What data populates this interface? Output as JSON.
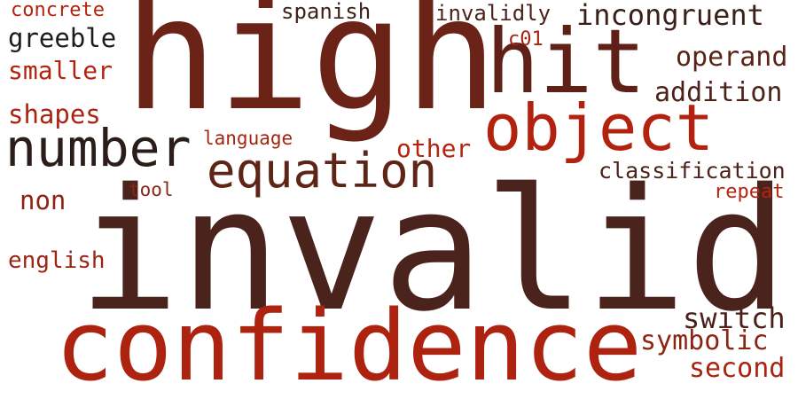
{
  "words": [
    {
      "id": "invalid",
      "text": "invalid",
      "color": "#4a231c"
    },
    {
      "id": "high",
      "text": "high",
      "color": "#6b2318"
    },
    {
      "id": "confidence",
      "text": "confidence",
      "color": "#ad2310"
    },
    {
      "id": "hit",
      "text": "hit",
      "color": "#5f2018"
    },
    {
      "id": "object",
      "text": "object",
      "color": "#b2220f"
    },
    {
      "id": "number",
      "text": "number",
      "color": "#2b1d1a"
    },
    {
      "id": "equation",
      "text": "equation",
      "color": "#5e2416"
    },
    {
      "id": "incongruent",
      "text": "incongruent",
      "color": "#3b2019"
    },
    {
      "id": "operand",
      "text": "operand",
      "color": "#5a2317"
    },
    {
      "id": "addition",
      "text": "addition",
      "color": "#4d2219"
    },
    {
      "id": "switch",
      "text": "switch",
      "color": "#4a211a"
    },
    {
      "id": "symbolic",
      "text": "symbolic",
      "color": "#8c2412"
    },
    {
      "id": "second",
      "text": "second",
      "color": "#a82310"
    },
    {
      "id": "greeble",
      "text": "greeble",
      "color": "#1c1c1c"
    },
    {
      "id": "smaller",
      "text": "smaller",
      "color": "#b3230e"
    },
    {
      "id": "shapes",
      "text": "shapes",
      "color": "#ac2410"
    },
    {
      "id": "non",
      "text": "non",
      "color": "#8f2314"
    },
    {
      "id": "english",
      "text": "english",
      "color": "#9c2413"
    },
    {
      "id": "concrete",
      "text": "concrete",
      "color": "#b3230e"
    },
    {
      "id": "spanish",
      "text": "spanish",
      "color": "#3d211b"
    },
    {
      "id": "invalidly",
      "text": "invalidly",
      "color": "#4c2219"
    },
    {
      "id": "c01",
      "text": "c01",
      "color": "#a52410"
    },
    {
      "id": "language",
      "text": "language",
      "color": "#a3250f"
    },
    {
      "id": "other",
      "text": "other",
      "color": "#b4230f"
    },
    {
      "id": "tool",
      "text": "tool",
      "color": "#8c2513"
    },
    {
      "id": "classification",
      "text": "classification",
      "color": "#4d2319"
    },
    {
      "id": "repeat",
      "text": "repeat",
      "color": "#b6230e"
    }
  ]
}
